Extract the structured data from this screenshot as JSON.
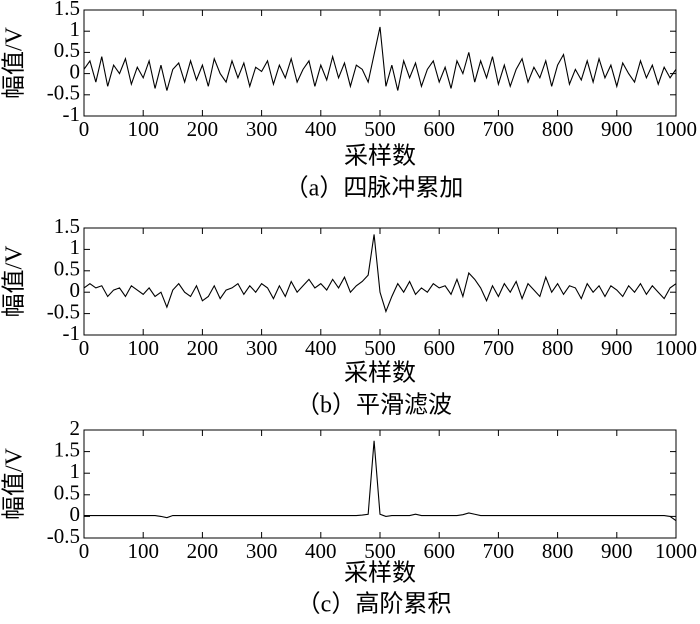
{
  "chart_data": [
    {
      "type": "line",
      "caption": "（a）四脉冲累加",
      "xlabel": "采样数",
      "ylabel": "幅值/V",
      "color": "#000000",
      "xlim": [
        0,
        1000
      ],
      "xticks": [
        0,
        100,
        200,
        300,
        400,
        500,
        600,
        700,
        800,
        900,
        1000
      ],
      "ylim": [
        -1,
        1.5
      ],
      "yticks": [
        -1,
        -0.5,
        0,
        0.5,
        1,
        1.5
      ],
      "x": [
        0,
        10,
        20,
        30,
        40,
        50,
        60,
        70,
        80,
        90,
        100,
        110,
        120,
        130,
        140,
        150,
        160,
        170,
        180,
        190,
        200,
        210,
        220,
        230,
        240,
        250,
        260,
        270,
        280,
        290,
        300,
        310,
        320,
        330,
        340,
        350,
        360,
        370,
        380,
        390,
        400,
        410,
        420,
        430,
        440,
        450,
        460,
        470,
        480,
        490,
        500,
        510,
        520,
        530,
        540,
        550,
        560,
        570,
        580,
        590,
        600,
        610,
        620,
        630,
        640,
        650,
        660,
        670,
        680,
        690,
        700,
        710,
        720,
        730,
        740,
        750,
        760,
        770,
        780,
        790,
        800,
        810,
        820,
        830,
        840,
        850,
        860,
        870,
        880,
        890,
        900,
        910,
        920,
        930,
        940,
        950,
        960,
        970,
        980,
        990,
        1000
      ],
      "values": [
        0.1,
        0.3,
        -0.2,
        0.4,
        -0.3,
        0.2,
        0.0,
        0.35,
        -0.25,
        0.15,
        -0.1,
        0.3,
        -0.35,
        0.2,
        -0.4,
        0.1,
        0.25,
        -0.2,
        0.3,
        -0.15,
        0.2,
        -0.3,
        0.35,
        0.0,
        -0.2,
        0.3,
        -0.1,
        0.25,
        -0.3,
        0.15,
        0.05,
        0.3,
        -0.25,
        0.2,
        -0.1,
        0.35,
        -0.2,
        0.1,
        0.3,
        -0.3,
        0.2,
        -0.15,
        0.4,
        -0.1,
        0.25,
        -0.3,
        0.2,
        0.1,
        -0.2,
        0.45,
        1.1,
        -0.3,
        0.2,
        -0.4,
        0.3,
        -0.1,
        0.25,
        -0.3,
        0.1,
        0.3,
        -0.2,
        0.15,
        -0.35,
        0.3,
        0.0,
        0.5,
        -0.2,
        0.3,
        -0.1,
        0.4,
        -0.25,
        0.2,
        -0.3,
        0.1,
        0.35,
        -0.2,
        0.15,
        -0.1,
        0.3,
        -0.3,
        0.2,
        0.45,
        -0.25,
        0.1,
        -0.15,
        0.3,
        -0.2,
        0.35,
        -0.1,
        0.2,
        -0.3,
        0.25,
        0.0,
        -0.2,
        0.3,
        -0.1,
        0.2,
        -0.25,
        0.15,
        -0.1,
        0.1
      ]
    },
    {
      "type": "line",
      "caption": "（b）平滑滤波",
      "xlabel": "采样数",
      "ylabel": "幅值/V",
      "color": "#000000",
      "xlim": [
        0,
        1000
      ],
      "xticks": [
        0,
        100,
        200,
        300,
        400,
        500,
        600,
        700,
        800,
        900,
        1000
      ],
      "ylim": [
        -1,
        1.5
      ],
      "yticks": [
        -1,
        -0.5,
        0,
        0.5,
        1,
        1.5
      ],
      "x": [
        0,
        10,
        20,
        30,
        40,
        50,
        60,
        70,
        80,
        90,
        100,
        110,
        120,
        130,
        140,
        150,
        160,
        170,
        180,
        190,
        200,
        210,
        220,
        230,
        240,
        250,
        260,
        270,
        280,
        290,
        300,
        310,
        320,
        330,
        340,
        350,
        360,
        370,
        380,
        390,
        400,
        410,
        420,
        430,
        440,
        450,
        460,
        470,
        480,
        490,
        500,
        510,
        520,
        530,
        540,
        550,
        560,
        570,
        580,
        590,
        600,
        610,
        620,
        630,
        640,
        650,
        660,
        670,
        680,
        690,
        700,
        710,
        720,
        730,
        740,
        750,
        760,
        770,
        780,
        790,
        800,
        810,
        820,
        830,
        840,
        850,
        860,
        870,
        880,
        890,
        900,
        910,
        920,
        930,
        940,
        950,
        960,
        970,
        980,
        990,
        1000
      ],
      "values": [
        0.1,
        0.2,
        0.1,
        0.15,
        -0.1,
        0.05,
        0.1,
        -0.1,
        0.15,
        0.05,
        -0.05,
        0.1,
        -0.1,
        0.0,
        -0.35,
        0.05,
        0.2,
        0.0,
        -0.1,
        0.15,
        -0.2,
        -0.1,
        0.15,
        -0.15,
        0.05,
        0.1,
        0.2,
        -0.05,
        0.15,
        0.0,
        0.2,
        0.1,
        -0.15,
        0.15,
        -0.1,
        0.25,
        0.0,
        0.15,
        0.3,
        0.1,
        0.2,
        0.05,
        0.3,
        0.1,
        0.35,
        0.0,
        0.15,
        0.25,
        0.4,
        1.35,
        0.0,
        -0.45,
        -0.1,
        0.2,
        0.0,
        0.25,
        -0.05,
        0.1,
        0.0,
        0.2,
        0.1,
        0.15,
        -0.05,
        0.3,
        -0.1,
        0.45,
        0.3,
        0.1,
        -0.2,
        0.15,
        -0.1,
        0.2,
        0.0,
        0.25,
        -0.15,
        0.2,
        0.05,
        -0.1,
        0.35,
        0.0,
        0.2,
        -0.05,
        0.15,
        0.1,
        -0.15,
        0.2,
        0.0,
        0.15,
        -0.1,
        0.15,
        0.05,
        -0.1,
        0.15,
        0.0,
        0.2,
        -0.05,
        0.15,
        0.0,
        -0.15,
        0.1,
        0.2
      ]
    },
    {
      "type": "line",
      "caption": "（c）高阶累积",
      "xlabel": "采样数",
      "ylabel": "幅值/V",
      "color": "#000000",
      "xlim": [
        0,
        1000
      ],
      "xticks": [
        0,
        100,
        200,
        300,
        400,
        500,
        600,
        700,
        800,
        900,
        1000
      ],
      "ylim": [
        -0.5,
        2
      ],
      "yticks": [
        -0.5,
        0,
        0.5,
        1,
        1.5,
        2
      ],
      "x": [
        0,
        10,
        20,
        30,
        40,
        50,
        60,
        70,
        80,
        90,
        100,
        110,
        120,
        130,
        140,
        150,
        160,
        170,
        180,
        190,
        200,
        210,
        220,
        230,
        240,
        250,
        260,
        270,
        280,
        290,
        300,
        310,
        320,
        330,
        340,
        350,
        360,
        370,
        380,
        390,
        400,
        410,
        420,
        430,
        440,
        450,
        460,
        470,
        480,
        490,
        500,
        510,
        520,
        530,
        540,
        550,
        560,
        570,
        580,
        590,
        600,
        610,
        620,
        630,
        640,
        650,
        660,
        670,
        680,
        690,
        700,
        710,
        720,
        730,
        740,
        750,
        760,
        770,
        780,
        790,
        800,
        810,
        820,
        830,
        840,
        850,
        860,
        870,
        880,
        890,
        900,
        910,
        920,
        930,
        940,
        950,
        960,
        970,
        980,
        990,
        1000
      ],
      "values": [
        0.02,
        0.02,
        0.02,
        0.02,
        0.02,
        0.02,
        0.02,
        0.02,
        0.02,
        0.02,
        0.02,
        0.02,
        0.02,
        0.0,
        -0.03,
        0.02,
        0.02,
        0.02,
        0.02,
        0.02,
        0.02,
        0.02,
        0.02,
        0.02,
        0.02,
        0.02,
        0.02,
        0.02,
        0.02,
        0.02,
        0.02,
        0.02,
        0.02,
        0.02,
        0.02,
        0.02,
        0.02,
        0.02,
        0.02,
        0.02,
        0.02,
        0.02,
        0.02,
        0.02,
        0.02,
        0.02,
        0.02,
        0.03,
        0.05,
        1.75,
        0.05,
        0.0,
        0.02,
        0.02,
        0.02,
        0.02,
        0.05,
        0.02,
        0.02,
        0.02,
        0.02,
        0.02,
        0.02,
        0.02,
        0.04,
        0.08,
        0.05,
        0.02,
        0.02,
        0.02,
        0.02,
        0.02,
        0.02,
        0.02,
        0.02,
        0.02,
        0.02,
        0.02,
        0.02,
        0.02,
        0.02,
        0.02,
        0.02,
        0.02,
        0.02,
        0.02,
        0.02,
        0.02,
        0.02,
        0.02,
        0.02,
        0.02,
        0.02,
        0.02,
        0.02,
        0.02,
        0.02,
        0.02,
        0.02,
        0.0,
        -0.1
      ]
    }
  ]
}
